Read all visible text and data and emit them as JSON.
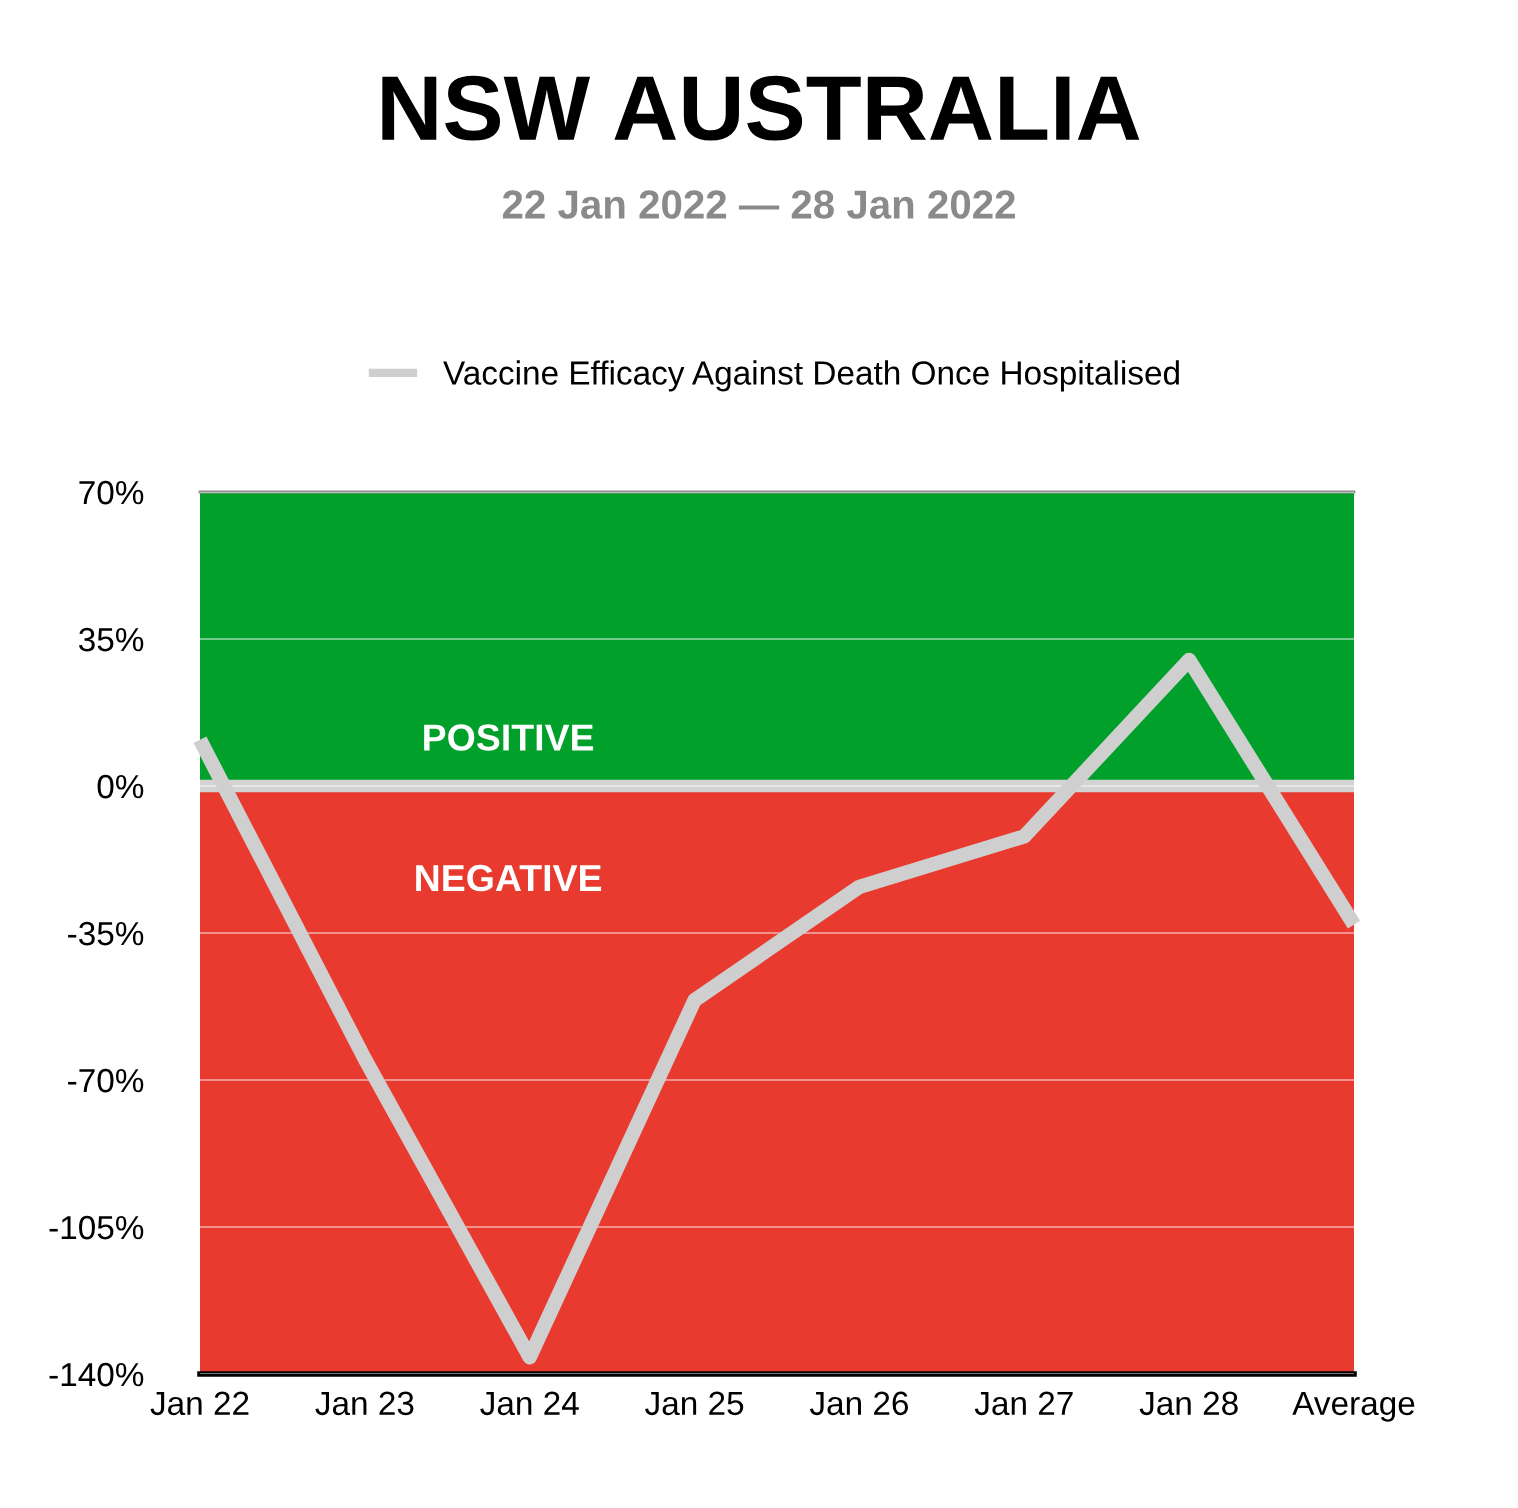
{
  "chart_data": {
    "type": "line",
    "title": "NSW AUSTRALIA",
    "subtitle": "22 Jan 2022 — 28 Jan 2022",
    "categories": [
      "Jan 22",
      "Jan 23",
      "Jan 24",
      "Jan 25",
      "Jan 26",
      "Jan 27",
      "Jan 28",
      "Average"
    ],
    "series": [
      {
        "name": "Vaccine Efficacy Against Death Once Hospitalised",
        "color": "#cfcfcf",
        "values": [
          11,
          -65,
          -136,
          -51,
          -24,
          -12,
          30,
          -33
        ]
      }
    ],
    "ylim": [
      -140,
      70
    ],
    "yticks": [
      {
        "value": -140,
        "label": "-140%"
      },
      {
        "value": -105,
        "label": "-105%"
      },
      {
        "value": -70,
        "label": "-70%"
      },
      {
        "value": -35,
        "label": "-35%"
      },
      {
        "value": 0,
        "label": "0%"
      },
      {
        "value": 35,
        "label": "35%"
      },
      {
        "value": 70,
        "label": "70%"
      }
    ],
    "bands": [
      {
        "axis": "y",
        "from": 0,
        "to": 70,
        "label": "POSITIVE",
        "color": "#00a02a"
      },
      {
        "axis": "y",
        "from": -140,
        "to": 0,
        "label": "NEGATIVE",
        "color": "#e83a2e"
      }
    ],
    "ref_lines": [
      {
        "axis": "y",
        "value": 0,
        "color": "#d3d3d3"
      }
    ],
    "grid": "y",
    "legend": "top",
    "marker": "none",
    "line_style": "solid"
  }
}
